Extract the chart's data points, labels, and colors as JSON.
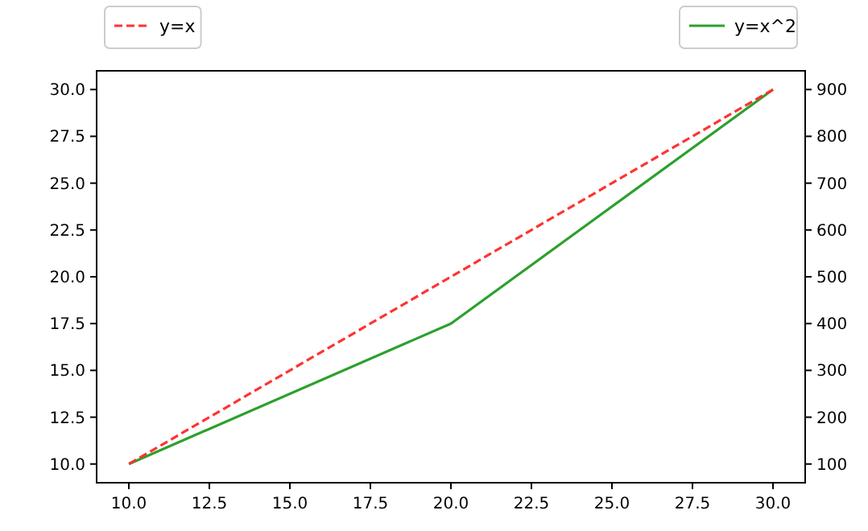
{
  "chart_data": {
    "type": "line",
    "x": [
      10,
      20,
      30
    ],
    "series": [
      {
        "name": "y=x",
        "color": "#ff3333",
        "values": [
          10,
          20,
          30
        ],
        "line_style": "dashed"
      },
      {
        "name": "y=x^2",
        "color": "#2ca02c",
        "values": [
          100,
          400,
          900
        ],
        "axis": "y2",
        "line_style": "solid"
      }
    ],
    "xlim": [
      9,
      31
    ],
    "xticks": [
      {
        "value": 10,
        "label": "10.0"
      },
      {
        "value": 12.5,
        "label": "12.5"
      },
      {
        "value": 15,
        "label": "15.0"
      },
      {
        "value": 17.5,
        "label": "17.5"
      },
      {
        "value": 20,
        "label": "20.0"
      },
      {
        "value": 22.5,
        "label": "22.5"
      },
      {
        "value": 25,
        "label": "25.0"
      },
      {
        "value": 27.5,
        "label": "27.5"
      },
      {
        "value": 30,
        "label": "30.0"
      }
    ],
    "ylim": [
      9,
      31
    ],
    "yticks": [
      {
        "value": 10,
        "label": "10.0"
      },
      {
        "value": 12.5,
        "label": "12.5"
      },
      {
        "value": 15,
        "label": "15.0"
      },
      {
        "value": 17.5,
        "label": "17.5"
      },
      {
        "value": 20,
        "label": "20.0"
      },
      {
        "value": 22.5,
        "label": "22.5"
      },
      {
        "value": 25,
        "label": "25.0"
      },
      {
        "value": 27.5,
        "label": "27.5"
      },
      {
        "value": 30,
        "label": "30.0"
      }
    ],
    "y2lim": [
      60,
      940
    ],
    "y2ticks": [
      100,
      200,
      300,
      400,
      500,
      600,
      700,
      800,
      900
    ],
    "legend": "top",
    "grid": false,
    "marker": "none"
  }
}
